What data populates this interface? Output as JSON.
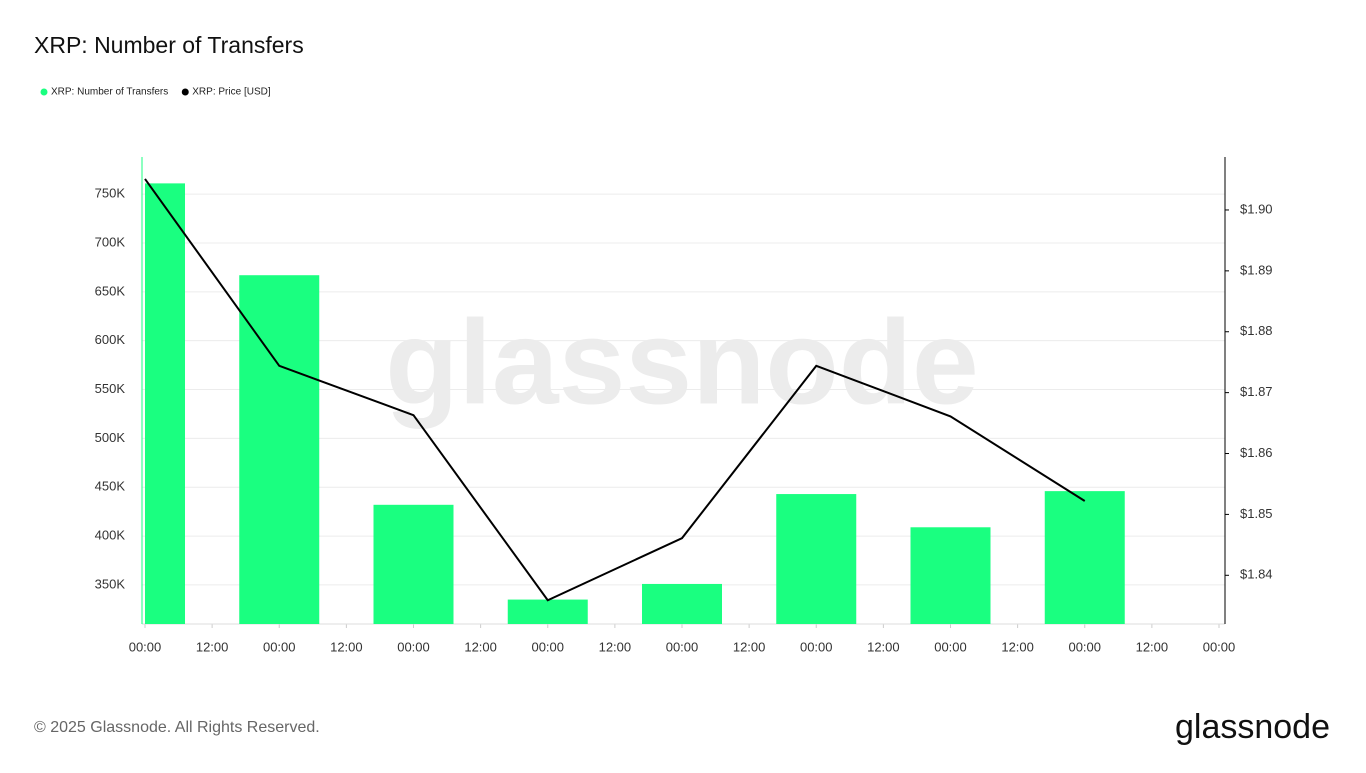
{
  "chart_data": {
    "type": "bar_line",
    "title": "XRP: Number of Transfers",
    "watermark": "glassnode",
    "footer": "© 2025 Glassnode. All Rights Reserved.",
    "logo": "glassnode",
    "x": [
      0,
      24,
      48,
      72,
      96,
      120,
      144,
      168
    ],
    "xlim": [
      0,
      192
    ],
    "xticks": [
      {
        "value": 0,
        "label": "00:00"
      },
      {
        "value": 12,
        "label": "12:00"
      },
      {
        "value": 24,
        "label": "00:00"
      },
      {
        "value": 36,
        "label": "12:00"
      },
      {
        "value": 48,
        "label": "00:00"
      },
      {
        "value": 60,
        "label": "12:00"
      },
      {
        "value": 72,
        "label": "00:00"
      },
      {
        "value": 84,
        "label": "12:00"
      },
      {
        "value": 96,
        "label": "00:00"
      },
      {
        "value": 108,
        "label": "12:00"
      },
      {
        "value": 120,
        "label": "00:00"
      },
      {
        "value": 132,
        "label": "12:00"
      },
      {
        "value": 144,
        "label": "00:00"
      },
      {
        "value": 156,
        "label": "12:00"
      },
      {
        "value": 168,
        "label": "00:00"
      },
      {
        "value": 180,
        "label": "12:00"
      },
      {
        "value": 192,
        "label": "00:00"
      }
    ],
    "ylim": [
      310000,
      788000
    ],
    "yticks": [
      {
        "value": 350000,
        "label": "350K"
      },
      {
        "value": 400000,
        "label": "400K"
      },
      {
        "value": 450000,
        "label": "450K"
      },
      {
        "value": 500000,
        "label": "500K"
      },
      {
        "value": 550000,
        "label": "550K"
      },
      {
        "value": 600000,
        "label": "600K"
      },
      {
        "value": 650000,
        "label": "650K"
      },
      {
        "value": 700000,
        "label": "700K"
      },
      {
        "value": 750000,
        "label": "750K"
      }
    ],
    "y2lim": [
      1.832,
      1.9087
    ],
    "y2ticks": [
      {
        "value": 1.84,
        "label": "$1.84"
      },
      {
        "value": 1.85,
        "label": "$1.85"
      },
      {
        "value": 1.86,
        "label": "$1.86"
      },
      {
        "value": 1.87,
        "label": "$1.87"
      },
      {
        "value": 1.88,
        "label": "$1.88"
      },
      {
        "value": 1.89,
        "label": "$1.89"
      },
      {
        "value": 1.9,
        "label": "$1.90"
      }
    ],
    "grid": true,
    "series": [
      {
        "name": "XRP: Number of Transfers",
        "type": "bar",
        "color": "#1aff80",
        "values": [
          761000,
          667000,
          432000,
          335000,
          351000,
          443000,
          409000,
          446000
        ]
      },
      {
        "name": "XRP: Price [USD]",
        "type": "line",
        "axis": "y2",
        "color": "#000000",
        "values": [
          1.9051,
          1.8744,
          1.8663,
          1.8359,
          1.8461,
          1.8744,
          1.8661,
          1.8522
        ]
      }
    ]
  }
}
